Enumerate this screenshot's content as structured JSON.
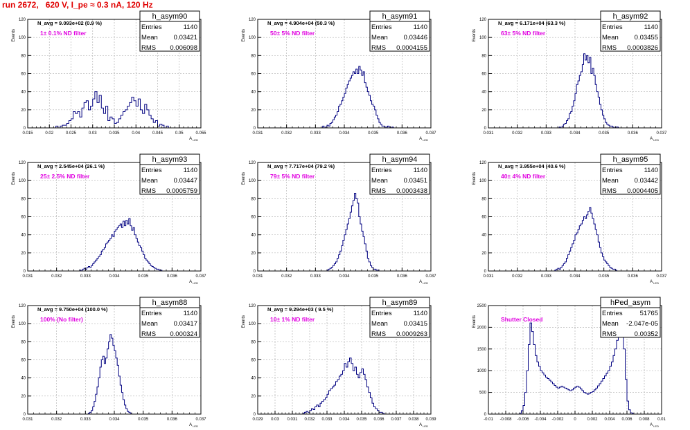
{
  "page_title": "run 2672,   620 V, I_pe ≈ 0.3 nA, 120 Hz",
  "colors": {
    "hist": "#000080",
    "note": "#e000e0",
    "title": "#e00000",
    "grid": "#b4b4b4"
  },
  "chart_data": [
    {
      "type": "bar",
      "name": "h_asym90",
      "xlabel": "A_LED",
      "ylabel": "Events",
      "stats": {
        "Entries": "1140",
        "Mean": "0.03421",
        "RMS": "0.006098"
      },
      "navg": "N_avg = 9.093e+02 (0.9 %)",
      "note": "1± 0.1% ND filter",
      "xlim": [
        0.015,
        0.055
      ],
      "xticks": [
        "0.015",
        "0.02",
        "0.025",
        "0.03",
        "0.035",
        "0.04",
        "0.045",
        "0.05",
        "0.055"
      ],
      "ylim": [
        0,
        120
      ],
      "yticks": [
        "0",
        "20",
        "40",
        "60",
        "80",
        "100",
        "120"
      ],
      "bins": {
        "start": 0.0215,
        "width": 0.0005,
        "values": [
          2,
          0,
          2,
          3,
          3,
          5,
          8,
          10,
          18,
          16,
          18,
          12,
          22,
          28,
          30,
          20,
          24,
          32,
          40,
          28,
          36,
          22,
          16,
          24,
          8,
          12,
          10,
          5,
          6,
          10,
          14,
          18,
          20,
          24,
          28,
          34,
          30,
          24,
          32,
          20,
          16,
          26,
          20,
          14,
          10,
          6,
          8,
          2,
          4,
          3,
          0,
          2
        ]
      }
    },
    {
      "type": "bar",
      "name": "h_asym91",
      "xlabel": "A_LED",
      "ylabel": "Events",
      "stats": {
        "Entries": "1140",
        "Mean": "0.03446",
        "RMS": "0.0004155"
      },
      "navg": "N_avg = 4.904e+04 (50.3 %)",
      "note": "50± 5% ND filter",
      "xlim": [
        0.031,
        0.037
      ],
      "xticks": [
        "0.031",
        "0.032",
        "0.033",
        "0.034",
        "0.035",
        "0.036",
        "0.037"
      ],
      "ylim": [
        0,
        120
      ],
      "yticks": [
        "0",
        "20",
        "40",
        "60",
        "80",
        "100",
        "120"
      ],
      "bins": {
        "start": 0.03325,
        "width": 5e-05,
        "values": [
          2,
          0,
          1,
          3,
          2,
          5,
          6,
          9,
          12,
          14,
          18,
          24,
          26,
          30,
          34,
          38,
          44,
          48,
          52,
          55,
          58,
          62,
          60,
          65,
          60,
          68,
          64,
          58,
          62,
          50,
          45,
          40,
          36,
          30,
          26,
          24,
          20,
          14,
          10,
          6,
          4,
          2,
          2,
          1,
          1,
          2,
          1,
          0,
          1
        ]
      }
    },
    {
      "type": "bar",
      "name": "h_asym92",
      "xlabel": "A_LED",
      "ylabel": "Events",
      "stats": {
        "Entries": "1140",
        "Mean": "0.03455",
        "RMS": "0.0003826"
      },
      "navg": "N_avg = 6.171e+04 (63.3 %)",
      "note": "63± 5% ND filter",
      "xlim": [
        0.031,
        0.037
      ],
      "xticks": [
        "0.031",
        "0.032",
        "0.033",
        "0.034",
        "0.035",
        "0.036",
        "0.037"
      ],
      "ylim": [
        0,
        120
      ],
      "yticks": [
        "0",
        "20",
        "40",
        "60",
        "80",
        "100",
        "120"
      ],
      "bins": {
        "start": 0.03345,
        "width": 5e-05,
        "values": [
          1,
          0,
          2,
          4,
          5,
          8,
          10,
          16,
          18,
          24,
          30,
          38,
          48,
          52,
          58,
          62,
          70,
          82,
          75,
          80,
          72,
          78,
          60,
          66,
          58,
          48,
          40,
          34,
          26,
          20,
          14,
          10,
          6,
          4,
          3,
          2,
          2,
          1,
          0,
          1,
          1
        ]
      }
    },
    {
      "type": "bar",
      "name": "h_asym93",
      "xlabel": "A_LED",
      "ylabel": "Events",
      "stats": {
        "Entries": "1140",
        "Mean": "0.03447",
        "RMS": "0.0005759"
      },
      "navg": "N_avg = 2.545e+04 (26.1 %)",
      "note": "25± 2.5% ND filter",
      "xlim": [
        0.031,
        0.037
      ],
      "xticks": [
        "0.031",
        "0.032",
        "0.033",
        "0.034",
        "0.035",
        "0.036",
        "0.037"
      ],
      "ylim": [
        0,
        120
      ],
      "yticks": [
        "0",
        "20",
        "40",
        "60",
        "80",
        "100",
        "120"
      ],
      "bins": {
        "start": 0.0328,
        "width": 5e-05,
        "values": [
          1,
          0,
          2,
          3,
          2,
          4,
          5,
          4,
          6,
          8,
          10,
          12,
          14,
          16,
          18,
          22,
          24,
          26,
          30,
          32,
          34,
          36,
          40,
          38,
          44,
          46,
          48,
          50,
          52,
          48,
          55,
          50,
          56,
          52,
          58,
          50,
          45,
          48,
          40,
          36,
          32,
          28,
          26,
          22,
          18,
          14,
          12,
          10,
          8,
          6,
          5,
          4,
          3,
          2,
          2,
          1,
          1
        ]
      }
    },
    {
      "type": "bar",
      "name": "h_asym94",
      "xlabel": "A_LED",
      "ylabel": "Events",
      "stats": {
        "Entries": "1140",
        "Mean": "0.03451",
        "RMS": "0.0003438"
      },
      "navg": "N_avg = 7.717e+04 (79.2 %)",
      "note": "79± 5% ND filter",
      "xlim": [
        0.031,
        0.037
      ],
      "xticks": [
        "0.031",
        "0.032",
        "0.033",
        "0.034",
        "0.035",
        "0.036",
        "0.037"
      ],
      "ylim": [
        0,
        120
      ],
      "yticks": [
        "0",
        "20",
        "40",
        "60",
        "80",
        "100",
        "120"
      ],
      "bins": {
        "start": 0.0334,
        "width": 5e-05,
        "values": [
          1,
          2,
          3,
          4,
          6,
          8,
          10,
          14,
          18,
          22,
          28,
          34,
          40,
          46,
          52,
          58,
          65,
          72,
          78,
          86,
          80,
          75,
          60,
          52,
          44,
          38,
          30,
          22,
          14,
          10,
          6,
          4,
          2,
          2,
          1,
          1
        ]
      }
    },
    {
      "type": "bar",
      "name": "h_asym95",
      "xlabel": "A_LED",
      "ylabel": "Events",
      "stats": {
        "Entries": "1140",
        "Mean": "0.03442",
        "RMS": "0.0004405"
      },
      "navg": "N_avg = 3.955e+04 (40.6 %)",
      "note": "40± 4% ND filter",
      "xlim": [
        0.031,
        0.037
      ],
      "xticks": [
        "0.031",
        "0.032",
        "0.033",
        "0.034",
        "0.035",
        "0.036",
        "0.037"
      ],
      "ylim": [
        0,
        120
      ],
      "yticks": [
        "0",
        "20",
        "40",
        "60",
        "80",
        "100",
        "120"
      ],
      "bins": {
        "start": 0.0333,
        "width": 5e-05,
        "values": [
          1,
          2,
          3,
          2,
          4,
          6,
          8,
          10,
          14,
          18,
          22,
          26,
          30,
          34,
          40,
          42,
          46,
          50,
          52,
          56,
          60,
          58,
          62,
          66,
          70,
          64,
          58,
          52,
          46,
          40,
          32,
          26,
          20,
          16,
          12,
          10,
          8,
          6,
          4,
          3,
          2,
          2,
          1
        ]
      }
    },
    {
      "type": "bar",
      "name": "h_asym88",
      "xlabel": "A_LED",
      "ylabel": "Events",
      "stats": {
        "Entries": "1140",
        "Mean": "0.03417",
        "RMS": "0.000324"
      },
      "navg": "N_avg = 9.750e+04 (100.0 %)",
      "note": "100% (No filter)",
      "xlim": [
        0.031,
        0.037
      ],
      "xticks": [
        "0.031",
        "0.032",
        "0.033",
        "0.034",
        "0.035",
        "0.036",
        "0.037"
      ],
      "ylim": [
        0,
        120
      ],
      "yticks": [
        "0",
        "20",
        "40",
        "60",
        "80",
        "100",
        "120"
      ],
      "bins": {
        "start": 0.0331,
        "width": 5e-05,
        "values": [
          1,
          2,
          4,
          8,
          14,
          22,
          30,
          40,
          52,
          60,
          64,
          56,
          62,
          72,
          80,
          88,
          84,
          76,
          70,
          62,
          54,
          42,
          32,
          24,
          16,
          10,
          6,
          3,
          2,
          1
        ]
      }
    },
    {
      "type": "bar",
      "name": "h_asym89",
      "xlabel": "A_LED",
      "ylabel": "Events",
      "stats": {
        "Entries": "1140",
        "Mean": "0.03415",
        "RMS": "0.0009263"
      },
      "navg": "N_avg = 9.294e+03 ( 9.5 %)",
      "note": "10± 1% ND filter",
      "xlim": [
        0.029,
        0.039
      ],
      "xticks": [
        "0.029",
        "0.03",
        "0.031",
        "0.032",
        "0.033",
        "0.034",
        "0.035",
        "0.036",
        "0.037",
        "0.038",
        "0.039"
      ],
      "ylim": [
        0,
        120
      ],
      "yticks": [
        "0",
        "20",
        "40",
        "60",
        "80",
        "100",
        "120"
      ],
      "bins": {
        "start": 0.0316,
        "width": 0.0001,
        "values": [
          1,
          2,
          3,
          2,
          4,
          6,
          5,
          8,
          10,
          8,
          12,
          14,
          16,
          18,
          22,
          26,
          28,
          30,
          32,
          36,
          38,
          42,
          44,
          48,
          56,
          52,
          58,
          62,
          56,
          48,
          52,
          44,
          40,
          46,
          50,
          44,
          38,
          30,
          24,
          18,
          12,
          8,
          6,
          4,
          2,
          2,
          1
        ]
      }
    },
    {
      "type": "bar",
      "name": "hPed_asym",
      "xlabel": "A_LED",
      "ylabel": "Events",
      "stats": {
        "Entries": "51765",
        "Mean": "-2.047e-05",
        "RMS": "0.00352"
      },
      "navg": "",
      "note": "Shutter Closed",
      "xlim": [
        -0.01,
        0.01
      ],
      "xticks": [
        "-0.01",
        "-0.008",
        "-0.006",
        "-0.004",
        "-0.002",
        "0",
        "0.002",
        "0.004",
        "0.006",
        "0.008",
        "0.01"
      ],
      "ylim": [
        0,
        2500
      ],
      "yticks": [
        "0",
        "500",
        "1000",
        "1500",
        "2000",
        "2500"
      ],
      "bins": {
        "start": -0.0064,
        "width": 0.0002,
        "values": [
          20,
          80,
          200,
          500,
          1000,
          1600,
          2100,
          1900,
          1600,
          1350,
          1200,
          1100,
          1000,
          950,
          900,
          850,
          820,
          780,
          740,
          700,
          660,
          620,
          600,
          620,
          640,
          620,
          600,
          580,
          560,
          540,
          560,
          600,
          620,
          640,
          620,
          580,
          540,
          500,
          480,
          460,
          480,
          500,
          520,
          560,
          600,
          650,
          700,
          760,
          820,
          880,
          940,
          1000,
          1100,
          1200,
          1350,
          1500,
          1700,
          1950,
          2150,
          2050,
          1500,
          800,
          300,
          100,
          30,
          10
        ]
      }
    }
  ]
}
